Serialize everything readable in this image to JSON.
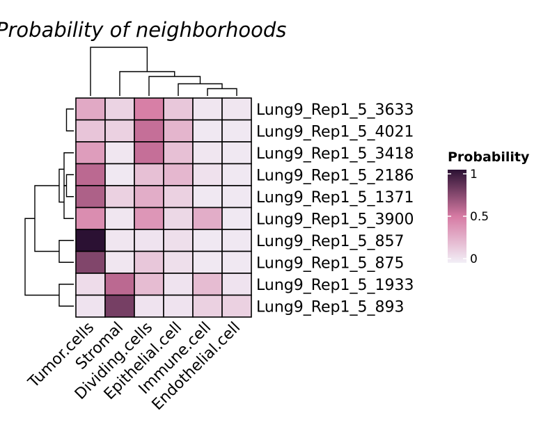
{
  "chart_data": {
    "type": "heatmap",
    "title": "Probability of neighborhoods",
    "columns": [
      "Tumor.cells",
      "Stromal",
      "Dividing.cells",
      "Epithelial.cell",
      "Immune.cell",
      "Endothelial.cell"
    ],
    "rows": [
      "Lung9_Rep1_5_3633",
      "Lung9_Rep1_5_4021",
      "Lung9_Rep1_5_3418",
      "Lung9_Rep1_5_2186",
      "Lung9_Rep1_5_1371",
      "Lung9_Rep1_5_3900",
      "Lung9_Rep1_5_857",
      "Lung9_Rep1_5_875",
      "Lung9_Rep1_5_1933",
      "Lung9_Rep1_5_893"
    ],
    "values": [
      [
        0.3,
        0.12,
        0.48,
        0.17,
        0.04,
        0.04
      ],
      [
        0.18,
        0.13,
        0.55,
        0.25,
        0.03,
        0.03
      ],
      [
        0.35,
        0.04,
        0.55,
        0.2,
        0.04,
        0.03
      ],
      [
        0.58,
        0.03,
        0.2,
        0.24,
        0.06,
        0.03
      ],
      [
        0.62,
        0.13,
        0.28,
        0.13,
        0.03,
        0.03
      ],
      [
        0.42,
        0.04,
        0.38,
        0.1,
        0.28,
        0.03
      ],
      [
        1.0,
        0.04,
        0.05,
        0.07,
        0.03,
        0.03
      ],
      [
        0.75,
        0.04,
        0.17,
        0.07,
        0.03,
        0.03
      ],
      [
        0.08,
        0.58,
        0.22,
        0.05,
        0.22,
        0.05
      ],
      [
        0.05,
        0.78,
        0.05,
        0.05,
        0.13,
        0.13
      ]
    ],
    "legend": {
      "title": "Probability",
      "ticks": [
        {
          "value": 0,
          "label": "0"
        },
        {
          "value": 0.5,
          "label": "0.5"
        },
        {
          "value": 1,
          "label": "1"
        }
      ]
    },
    "color_scale": {
      "domain": [
        0,
        0.5,
        1
      ],
      "colors": [
        "#f2eff7",
        "#d67aa3",
        "#2b1133"
      ]
    },
    "row_dendrogram": [
      [
        "Lung9_Rep1_5_3633",
        "Lung9_Rep1_5_4021",
        0.15
      ],
      [
        "Lung9_Rep1_5_2186",
        "Lung9_Rep1_5_1371",
        0.15
      ],
      [
        "Lung9_Rep1_5_3418",
        [
          0,
          1
        ],
        0.2
      ],
      [
        "Lung9_Rep1_5_3900",
        [
          1
        ],
        0.2
      ],
      [
        [
          2
        ],
        [
          3
        ],
        0.3
      ],
      [
        "Lung9_Rep1_5_857",
        "Lung9_Rep1_5_875",
        0.3
      ],
      [
        [
          4
        ],
        [
          5
        ],
        0.8
      ],
      [
        "Lung9_Rep1_5_1933",
        "Lung9_Rep1_5_893",
        0.3
      ],
      [
        [
          6
        ],
        [
          7
        ],
        1.0
      ]
    ],
    "col_dendrogram": [
      [
        "Immune.cell",
        "Endothelial.cell",
        0.15
      ],
      [
        "Epithelial.cell",
        [
          0
        ],
        0.25
      ],
      [
        "Dividing.cells",
        [
          1
        ],
        0.4
      ],
      [
        "Stromal",
        [
          2
        ],
        0.5
      ],
      [
        "Tumor.cells",
        [
          3
        ],
        1.0
      ]
    ]
  }
}
